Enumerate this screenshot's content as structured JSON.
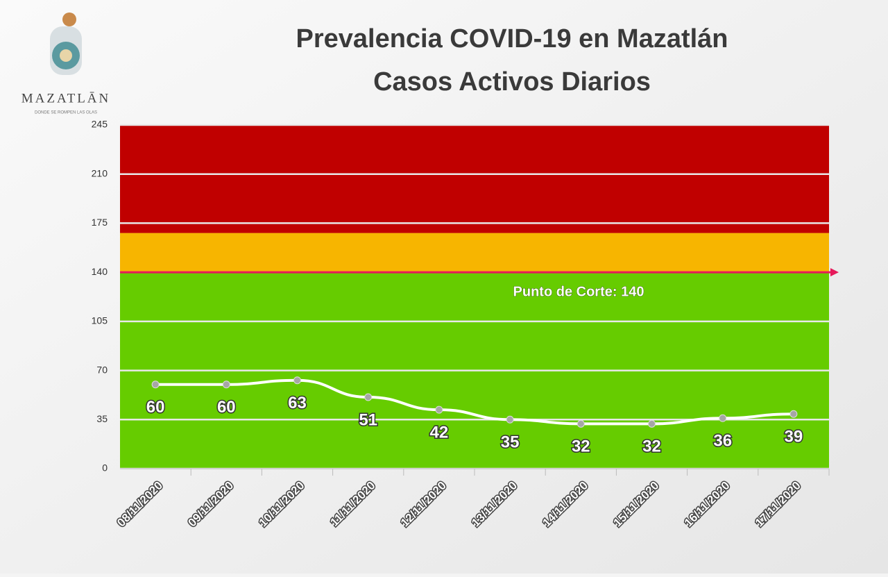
{
  "logo": {
    "name": "MAZATLĀN",
    "tagline": "DONDE SE ROMPEN LAS OLAS"
  },
  "chart_data": {
    "type": "line",
    "title": "Prevalencia COVID-19 en Mazatlán",
    "subtitle": "Casos Activos Diarios",
    "categories": [
      "08/11/2020",
      "09/11/2020",
      "10/11/2020",
      "11/11/2020",
      "12/11/2020",
      "13/11/2020",
      "14/11/2020",
      "15/11/2020",
      "16/11/2020",
      "17/11/2020"
    ],
    "series": [
      {
        "name": "Casos Activos",
        "color": "#ffffff",
        "values": [
          60,
          60,
          63,
          51,
          42,
          35,
          32,
          32,
          36,
          39
        ]
      }
    ],
    "ylim": [
      0,
      245
    ],
    "yticks": [
      0,
      35,
      70,
      105,
      140,
      175,
      210,
      245
    ],
    "grid": true,
    "bands": [
      {
        "from": 0,
        "to": 140,
        "color": "#66cc00"
      },
      {
        "from": 140,
        "to": 168,
        "color": "#f7b500"
      },
      {
        "from": 168,
        "to": 245,
        "color": "#c00000"
      }
    ],
    "threshold": {
      "value": 140,
      "color": "#e6195a",
      "label": "Punto de Corte: 140"
    }
  }
}
